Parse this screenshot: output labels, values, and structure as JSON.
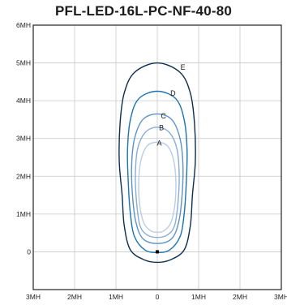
{
  "chart_data": {
    "type": "line",
    "title": "PFL-LED-16L-PC-NF-40-80",
    "xlabel": "",
    "ylabel": "",
    "xlim": [
      -3,
      3
    ],
    "ylim": [
      -1,
      6
    ],
    "x_ticks": [
      "3MH",
      "2MH",
      "1MH",
      "0",
      "1MH",
      "2MH",
      "3MH"
    ],
    "y_ticks": [
      "0",
      "1MH",
      "2MH",
      "3MH",
      "4MH",
      "5MH",
      "6MH"
    ],
    "grid": true,
    "luminaire_position": [
      0,
      0
    ],
    "series": [
      {
        "name": "E",
        "color": "#0d2f4f",
        "points": [
          [
            0,
            5.0
          ],
          [
            0.55,
            4.75
          ],
          [
            0.8,
            4.2
          ],
          [
            0.9,
            3.4
          ],
          [
            0.92,
            2.4
          ],
          [
            0.85,
            1.5
          ],
          [
            0.8,
            0.7
          ],
          [
            0.65,
            0.05
          ],
          [
            0.3,
            -0.22
          ],
          [
            0,
            -0.28
          ],
          [
            -0.3,
            -0.22
          ],
          [
            -0.65,
            0.05
          ],
          [
            -0.8,
            0.7
          ],
          [
            -0.85,
            1.5
          ],
          [
            -0.92,
            2.4
          ],
          [
            -0.9,
            3.4
          ],
          [
            -0.8,
            4.2
          ],
          [
            -0.55,
            4.75
          ]
        ],
        "label_at": [
          0.62,
          4.88
        ]
      },
      {
        "name": "D",
        "color": "#1b74b0",
        "points": [
          [
            0,
            4.25
          ],
          [
            0.45,
            4.05
          ],
          [
            0.65,
            3.5
          ],
          [
            0.72,
            2.7
          ],
          [
            0.7,
            1.8
          ],
          [
            0.65,
            1.0
          ],
          [
            0.55,
            0.4
          ],
          [
            0.3,
            0.05
          ],
          [
            0,
            -0.02
          ],
          [
            -0.3,
            0.05
          ],
          [
            -0.55,
            0.4
          ],
          [
            -0.65,
            1.0
          ],
          [
            -0.7,
            1.8
          ],
          [
            -0.72,
            2.7
          ],
          [
            -0.65,
            3.5
          ],
          [
            -0.45,
            4.05
          ]
        ],
        "label_at": [
          0.38,
          4.2
        ]
      },
      {
        "name": "C",
        "color": "#5d92c9",
        "points": [
          [
            0,
            3.65
          ],
          [
            0.35,
            3.5
          ],
          [
            0.55,
            3.0
          ],
          [
            0.62,
            2.3
          ],
          [
            0.6,
            1.5
          ],
          [
            0.52,
            0.8
          ],
          [
            0.35,
            0.35
          ],
          [
            0,
            0.22
          ],
          [
            -0.35,
            0.35
          ],
          [
            -0.52,
            0.8
          ],
          [
            -0.6,
            1.5
          ],
          [
            -0.62,
            2.3
          ],
          [
            -0.55,
            3.0
          ],
          [
            -0.35,
            3.5
          ]
        ],
        "label_at": [
          0.15,
          3.6
        ]
      },
      {
        "name": "B",
        "color": "#8aadd6",
        "points": [
          [
            0,
            3.3
          ],
          [
            0.3,
            3.15
          ],
          [
            0.48,
            2.7
          ],
          [
            0.53,
            2.0
          ],
          [
            0.5,
            1.3
          ],
          [
            0.42,
            0.7
          ],
          [
            0.25,
            0.45
          ],
          [
            0,
            0.38
          ],
          [
            -0.25,
            0.45
          ],
          [
            -0.42,
            0.7
          ],
          [
            -0.5,
            1.3
          ],
          [
            -0.53,
            2.0
          ],
          [
            -0.48,
            2.7
          ],
          [
            -0.3,
            3.15
          ]
        ],
        "label_at": [
          0.1,
          3.28
        ]
      },
      {
        "name": "A",
        "color": "#b9cde6",
        "points": [
          [
            0,
            2.9
          ],
          [
            0.25,
            2.8
          ],
          [
            0.4,
            2.4
          ],
          [
            0.45,
            1.8
          ],
          [
            0.42,
            1.2
          ],
          [
            0.32,
            0.75
          ],
          [
            0.15,
            0.55
          ],
          [
            0,
            0.52
          ],
          [
            -0.15,
            0.55
          ],
          [
            -0.32,
            0.75
          ],
          [
            -0.42,
            1.2
          ],
          [
            -0.45,
            1.8
          ],
          [
            -0.4,
            2.4
          ],
          [
            -0.25,
            2.8
          ]
        ],
        "label_at": [
          0.05,
          2.88
        ]
      }
    ]
  }
}
